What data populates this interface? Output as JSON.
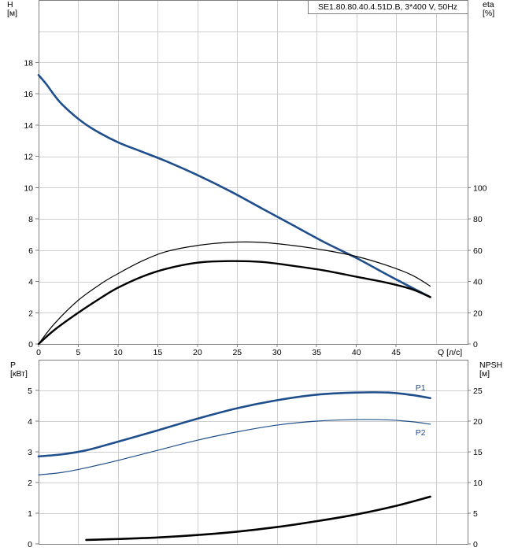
{
  "chart_data": [
    {
      "type": "line",
      "model_label": "SE1.80.80.40.4.51D.B, 3*400 V, 50Hz",
      "xlabel": "Q [л/с]",
      "ylabel": "H\n[м]",
      "y2label": "eta\n[%]",
      "xlim": [
        0,
        54
      ],
      "ylim": [
        0,
        22
      ],
      "y2lim": [
        0,
        220
      ],
      "x_ticks": [
        "0",
        "5",
        "10",
        "15",
        "20",
        "25",
        "30",
        "35",
        "40",
        "45"
      ],
      "y_ticks": [
        "0",
        "2",
        "4",
        "6",
        "8",
        "10",
        "12",
        "14",
        "16",
        "18"
      ],
      "y2_ticks": [
        "0",
        "20",
        "40",
        "60",
        "80",
        "100"
      ],
      "grid": true,
      "series": [
        {
          "axis": "left",
          "color": "#1f4e8c",
          "x": [
            0,
            1,
            2,
            3,
            5,
            7,
            10,
            13,
            16,
            20,
            24,
            28,
            32,
            36,
            40,
            44,
            47,
            49.3
          ],
          "y": [
            17.2,
            16.6,
            15.9,
            15.3,
            14.4,
            13.7,
            12.9,
            12.3,
            11.7,
            10.8,
            9.8,
            8.7,
            7.6,
            6.5,
            5.5,
            4.4,
            3.6,
            3.0
          ]
        },
        {
          "axis": "right",
          "color": "#000000",
          "x": [
            0,
            2,
            5,
            8,
            10,
            13,
            16,
            20,
            24,
            28,
            32,
            36,
            40,
            44,
            47,
            49.3
          ],
          "y": [
            0,
            13,
            28,
            39,
            45,
            53,
            59,
            63,
            65,
            65,
            63,
            60,
            56,
            50,
            44,
            37
          ]
        },
        {
          "axis": "right",
          "color": "#000000",
          "x": [
            0,
            2,
            5,
            8,
            10,
            13,
            16,
            20,
            24,
            28,
            32,
            36,
            40,
            44,
            47,
            49.3
          ],
          "y": [
            0,
            9,
            20,
            30,
            36,
            43,
            48,
            52,
            53,
            52.5,
            50,
            47,
            43,
            39,
            35,
            30
          ]
        }
      ]
    },
    {
      "type": "line",
      "xlim": [
        0,
        54
      ],
      "ylim": [
        0,
        6
      ],
      "y2lim": [
        0,
        30
      ],
      "ylabel": "P\n[кВт]",
      "y2label": "NPSH\n[м]",
      "y_ticks": [
        "0",
        "1",
        "2",
        "3",
        "4",
        "5"
      ],
      "y2_ticks": [
        "0",
        "5",
        "10",
        "15",
        "20",
        "25"
      ],
      "grid": true,
      "series": [
        {
          "name": "P1",
          "axis": "left",
          "color": "#1f4e8c",
          "x": [
            0,
            3,
            6,
            10,
            15,
            20,
            25,
            30,
            35,
            40,
            44,
            47,
            49.3
          ],
          "y": [
            2.85,
            2.92,
            3.05,
            3.33,
            3.7,
            4.08,
            4.42,
            4.68,
            4.86,
            4.93,
            4.93,
            4.85,
            4.75
          ]
        },
        {
          "name": "P2",
          "axis": "left",
          "color": "#1f4e8c",
          "x": [
            0,
            3,
            6,
            10,
            15,
            20,
            25,
            30,
            35,
            40,
            44,
            47,
            49.3
          ],
          "y": [
            2.25,
            2.33,
            2.48,
            2.72,
            3.05,
            3.38,
            3.65,
            3.87,
            4.0,
            4.05,
            4.04,
            3.98,
            3.9
          ]
        },
        {
          "axis": "right",
          "color": "#000000",
          "x": [
            6,
            10,
            15,
            20,
            25,
            30,
            35,
            40,
            45,
            49.3
          ],
          "y": [
            0.65,
            0.8,
            1.05,
            1.45,
            2.0,
            2.75,
            3.7,
            4.8,
            6.2,
            7.7
          ]
        }
      ]
    }
  ]
}
